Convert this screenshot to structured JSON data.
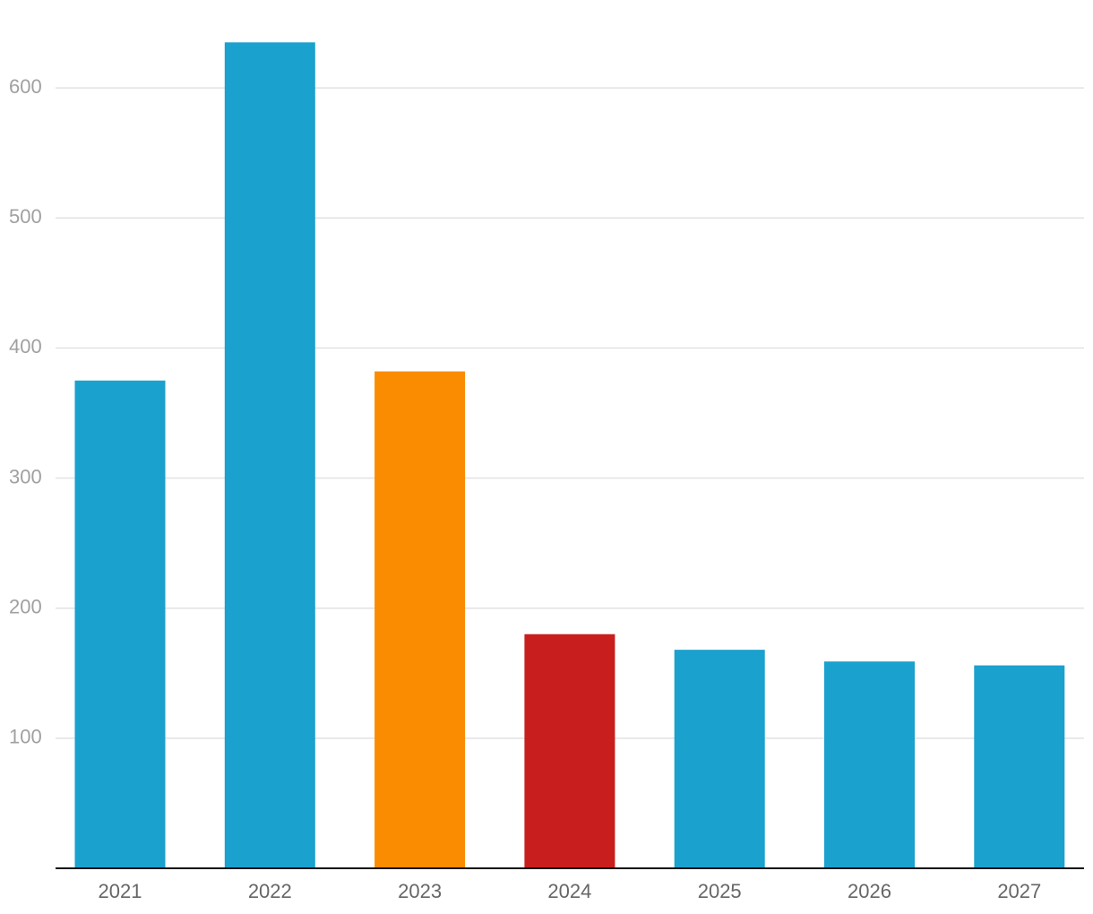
{
  "chart_data": {
    "type": "bar",
    "categories": [
      "2021",
      "2022",
      "2023",
      "2024",
      "2025",
      "2026",
      "2027"
    ],
    "values": [
      375,
      635,
      382,
      180,
      168,
      159,
      156
    ],
    "colors": [
      "#1aa1cd",
      "#1aa1cd",
      "#f98c00",
      "#c81e1e",
      "#1aa1cd",
      "#1aa1cd",
      "#1aa1cd"
    ],
    "ylim": [
      0,
      660
    ],
    "yticks": [
      100,
      200,
      300,
      400,
      500,
      600
    ],
    "grid": true
  }
}
